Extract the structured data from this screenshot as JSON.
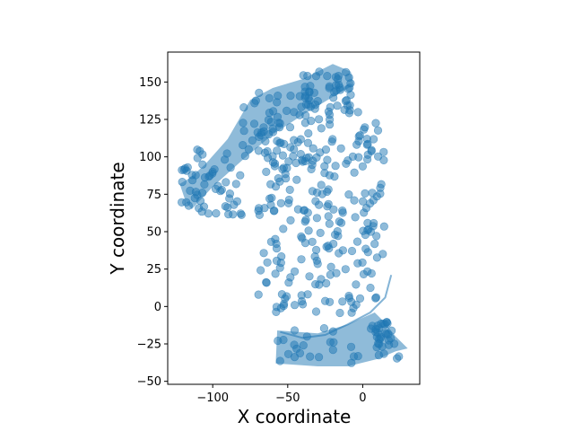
{
  "chart_data": {
    "type": "scatter",
    "title": "",
    "xlabel": "X coordinate",
    "ylabel": "Y coordinate",
    "xlim": [
      -130,
      38
    ],
    "ylim": [
      -52,
      170
    ],
    "xticks": [
      -100,
      -50,
      0
    ],
    "yticks": [
      -50,
      -25,
      0,
      25,
      50,
      75,
      100,
      125,
      150
    ],
    "grid": false,
    "legend": "none",
    "point_color": "#1f77b4",
    "regions": [
      {
        "shape": "polygon",
        "points": [
          [
            -122,
            82
          ],
          [
            -118,
            70
          ],
          [
            -114,
            65
          ],
          [
            -100,
            80
          ],
          [
            -80,
            98
          ],
          [
            -60,
            115
          ],
          [
            -40,
            128
          ],
          [
            -20,
            140
          ],
          [
            -6,
            148
          ],
          [
            -8,
            157
          ],
          [
            -20,
            162
          ],
          [
            -40,
            152
          ],
          [
            -60,
            146
          ],
          [
            -75,
            138
          ],
          [
            -90,
            112
          ],
          [
            -105,
            95
          ],
          [
            -115,
            86
          ]
        ]
      },
      {
        "shape": "polygon",
        "points": [
          [
            -57,
            -16
          ],
          [
            -30,
            -18
          ],
          [
            -10,
            -12
          ],
          [
            8,
            -4
          ],
          [
            14,
            -10
          ],
          [
            22,
            -20
          ],
          [
            30,
            -28
          ],
          [
            22,
            -30
          ],
          [
            10,
            -35
          ],
          [
            -10,
            -40
          ],
          [
            -30,
            -40
          ],
          [
            -58,
            -38
          ]
        ]
      },
      {
        "shape": "line",
        "points": [
          [
            -55,
            -17
          ],
          [
            -40,
            -21
          ],
          [
            -25,
            -19
          ],
          [
            -10,
            -12
          ],
          [
            5,
            -4
          ],
          [
            15,
            6
          ],
          [
            19,
            21
          ]
        ]
      }
    ],
    "clusters": [
      {
        "x": [
          -122,
          -80
        ],
        "y": [
          60,
          105
        ],
        "n": 55,
        "seed": 11
      },
      {
        "x": [
          -80,
          -35
        ],
        "y": [
          95,
          145
        ],
        "n": 55,
        "seed": 12
      },
      {
        "x": [
          -40,
          -8
        ],
        "y": [
          130,
          158
        ],
        "n": 45,
        "seed": 13
      },
      {
        "x": [
          -70,
          15
        ],
        "y": [
          -5,
          130
        ],
        "n": 230,
        "seed": 14
      },
      {
        "x": [
          -57,
          25
        ],
        "y": [
          -38,
          -10
        ],
        "n": 35,
        "seed": 15
      },
      {
        "x": [
          8,
          20
        ],
        "y": [
          -27,
          -10
        ],
        "n": 20,
        "seed": 16
      }
    ]
  }
}
